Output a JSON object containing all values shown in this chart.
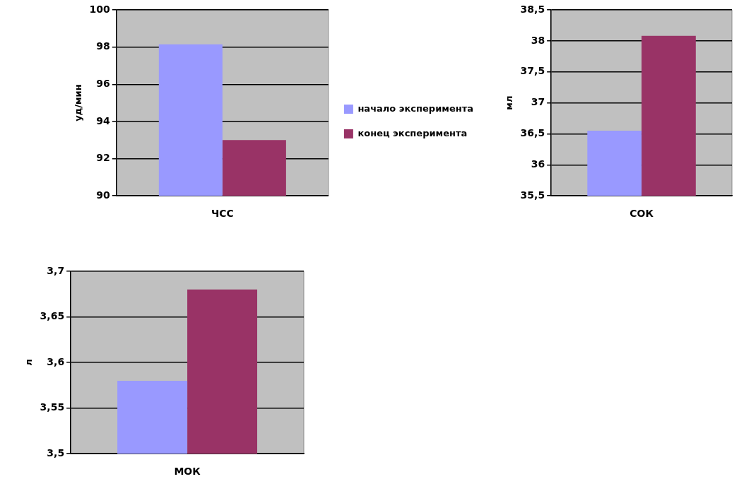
{
  "chart_data": [
    {
      "type": "bar",
      "categories": [
        "ЧСС"
      ],
      "ylabel": "уд/мин",
      "ylim": [
        90,
        100
      ],
      "yticks": [
        90,
        92,
        94,
        96,
        98,
        100
      ],
      "grid": "y",
      "legend": "right",
      "series": [
        {
          "name": "начало эксперимента",
          "color": "#9999ff",
          "values": [
            98.15
          ]
        },
        {
          "name": "конец эксперимента",
          "color": "#993366",
          "values": [
            93.0
          ]
        }
      ]
    },
    {
      "type": "bar",
      "categories": [
        "СОК"
      ],
      "ylabel": "мл",
      "ylim": [
        35.5,
        38.5
      ],
      "yticks": [
        {
          "value": 35.5,
          "label": "35,5"
        },
        36,
        {
          "value": 36.5,
          "label": "36,5"
        },
        37,
        {
          "value": 37.5,
          "label": "37,5"
        },
        38,
        {
          "value": 38.5,
          "label": "38,5"
        }
      ],
      "grid": "y",
      "series": [
        {
          "color": "#9999ff",
          "values": [
            36.55
          ]
        },
        {
          "color": "#993366",
          "values": [
            38.08
          ]
        }
      ]
    },
    {
      "type": "bar",
      "categories": [
        "МОК"
      ],
      "ylabel": "л",
      "ylim": [
        3.5,
        3.7
      ],
      "yticks": [
        {
          "value": 3.5,
          "label": "3,5"
        },
        {
          "value": 3.55,
          "label": "3,55"
        },
        {
          "value": 3.6,
          "label": "3,6"
        },
        {
          "value": 3.65,
          "label": "3,65"
        },
        {
          "value": 3.7,
          "label": "3,7"
        }
      ],
      "grid": "y",
      "series": [
        {
          "color": "#9999ff",
          "values": [
            3.58
          ]
        },
        {
          "color": "#993366",
          "values": [
            3.68
          ]
        }
      ]
    }
  ]
}
